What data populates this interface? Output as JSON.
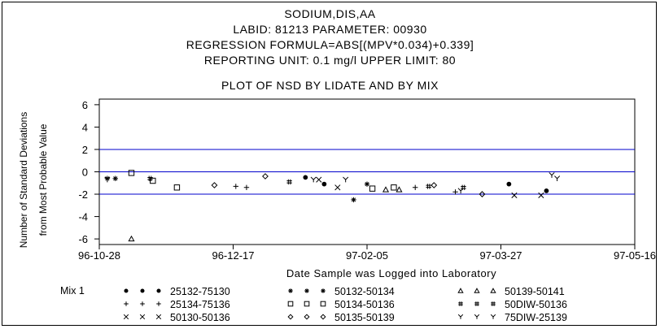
{
  "header": {
    "title": "SODIUM,DIS,AA",
    "line2": "LABID: 81213 PARAMETER: 00930",
    "line3": "REGRESSION FORMULA=ABS[(MPV*0.034)+0.339]",
    "line4": "REPORTING UNIT: 0.1 mg/l   UPPER LIMIT: 80",
    "subtitle": "PLOT OF NSD BY LIDATE AND BY MIX"
  },
  "chart_data": {
    "type": "scatter",
    "title": "PLOT OF NSD BY LIDATE AND BY MIX",
    "xlabel": "Date Sample was Logged into Laboratory",
    "ylabel": [
      "Number of Standard Deviations",
      "from Most Probable Value"
    ],
    "x_ticks": [
      "96-10-28",
      "96-12-17",
      "97-02-05",
      "97-03-27",
      "97-05-16"
    ],
    "xlim": [
      "96-10-28",
      "97-05-16"
    ],
    "ylim": [
      -6.5,
      6.5
    ],
    "y_ticks": [
      6,
      4,
      2,
      0,
      -2,
      -4,
      -6
    ],
    "reference_lines": [
      2,
      0,
      -2
    ],
    "reference_color": "#0000cc",
    "legend_title": "Mix 1",
    "series": [
      {
        "name": "25132-75130",
        "marker": "filled-circle",
        "points": [
          {
            "x": "97-01-13",
            "y": -0.5
          },
          {
            "x": "97-01-20",
            "y": -1.1
          },
          {
            "x": "97-03-30",
            "y": -1.1
          },
          {
            "x": "97-04-13",
            "y": -1.7
          }
        ]
      },
      {
        "name": "25134-75136",
        "marker": "plus",
        "points": [
          {
            "x": "96-12-18",
            "y": -1.3
          },
          {
            "x": "96-12-22",
            "y": -1.4
          },
          {
            "x": "97-02-23",
            "y": -1.4
          },
          {
            "x": "97-03-10",
            "y": -1.8
          }
        ]
      },
      {
        "name": "50130-50136",
        "marker": "x",
        "points": [
          {
            "x": "97-01-18",
            "y": -0.7
          },
          {
            "x": "97-01-25",
            "y": -1.4
          },
          {
            "x": "97-04-01",
            "y": -2.1
          },
          {
            "x": "97-04-11",
            "y": -2.1
          }
        ]
      },
      {
        "name": "50132-50134",
        "marker": "asterisk",
        "points": [
          {
            "x": "96-10-31",
            "y": -0.6
          },
          {
            "x": "96-11-03",
            "y": -0.6
          },
          {
            "x": "97-01-31",
            "y": -2.5
          },
          {
            "x": "97-02-05",
            "y": -1.1
          }
        ]
      },
      {
        "name": "50134-50136",
        "marker": "square",
        "points": [
          {
            "x": "96-11-09",
            "y": -0.1
          },
          {
            "x": "96-11-17",
            "y": -0.8
          },
          {
            "x": "96-11-26",
            "y": -1.4
          },
          {
            "x": "97-02-07",
            "y": -1.5
          },
          {
            "x": "97-02-15",
            "y": -1.4
          }
        ]
      },
      {
        "name": "50135-50139",
        "marker": "diamond",
        "points": [
          {
            "x": "96-12-10",
            "y": -1.2
          },
          {
            "x": "96-12-29",
            "y": -0.4
          },
          {
            "x": "97-03-02",
            "y": -1.2
          },
          {
            "x": "97-03-20",
            "y": -2.0
          }
        ]
      },
      {
        "name": "50139-50141",
        "marker": "triangle",
        "points": [
          {
            "x": "96-11-09",
            "y": -6.0
          },
          {
            "x": "97-02-12",
            "y": -1.6
          },
          {
            "x": "97-02-17",
            "y": -1.6
          }
        ]
      },
      {
        "name": "50DIW-50136",
        "marker": "hash",
        "points": [
          {
            "x": "96-11-16",
            "y": -0.6
          },
          {
            "x": "97-01-07",
            "y": -0.9
          },
          {
            "x": "97-02-28",
            "y": -1.3
          },
          {
            "x": "97-03-13",
            "y": -1.4
          }
        ]
      },
      {
        "name": "75DIW-25139",
        "marker": "y-shape",
        "points": [
          {
            "x": "96-10-31",
            "y": -0.7
          },
          {
            "x": "97-01-16",
            "y": -0.7
          },
          {
            "x": "97-01-28",
            "y": -0.7
          },
          {
            "x": "97-03-12",
            "y": -1.7
          },
          {
            "x": "97-04-15",
            "y": -0.3
          },
          {
            "x": "97-04-17",
            "y": -0.6
          }
        ]
      }
    ]
  }
}
